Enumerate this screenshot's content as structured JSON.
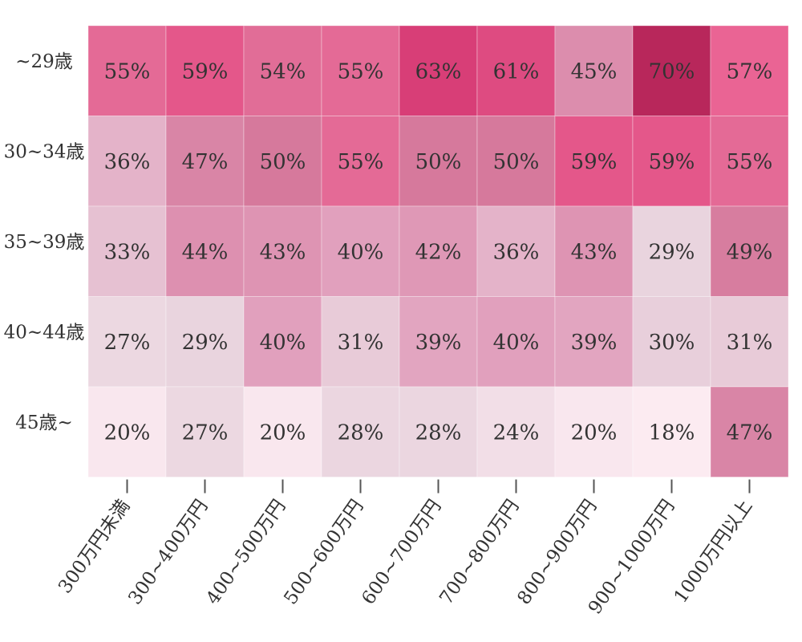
{
  "chart_data": {
    "type": "heatmap",
    "title": "",
    "xlabel": "",
    "ylabel": "",
    "rows": [
      "~29歳",
      "30~34歳",
      "35~39歳",
      "40~44歳",
      "45歳~"
    ],
    "columns": [
      "300万円未満",
      "300~400万円",
      "400~500万円",
      "500~600万円",
      "600~700万円",
      "700~800万円",
      "800~900万円",
      "900~1000万円",
      "1000万円以上"
    ],
    "values": [
      [
        55,
        59,
        54,
        55,
        63,
        61,
        45,
        70,
        57
      ],
      [
        36,
        47,
        50,
        55,
        50,
        50,
        59,
        59,
        55
      ],
      [
        33,
        44,
        43,
        40,
        42,
        36,
        43,
        29,
        49
      ],
      [
        27,
        29,
        40,
        31,
        39,
        40,
        39,
        30,
        31
      ],
      [
        20,
        27,
        20,
        28,
        28,
        24,
        20,
        18,
        47
      ]
    ],
    "labels": [
      [
        "55%",
        "59%",
        "54%",
        "55%",
        "63%",
        "61%",
        "45%",
        "70%",
        "57%"
      ],
      [
        "36%",
        "47%",
        "50%",
        "55%",
        "50%",
        "50%",
        "59%",
        "59%",
        "55%"
      ],
      [
        "33%",
        "44%",
        "43%",
        "40%",
        "42%",
        "36%",
        "43%",
        "29%",
        "49%"
      ],
      [
        "27%",
        "29%",
        "40%",
        "31%",
        "39%",
        "40%",
        "39%",
        "30%",
        "31%"
      ],
      [
        "20%",
        "27%",
        "20%",
        "28%",
        "28%",
        "24%",
        "20%",
        "18%",
        "47%"
      ]
    ],
    "value_unit": "%"
  }
}
